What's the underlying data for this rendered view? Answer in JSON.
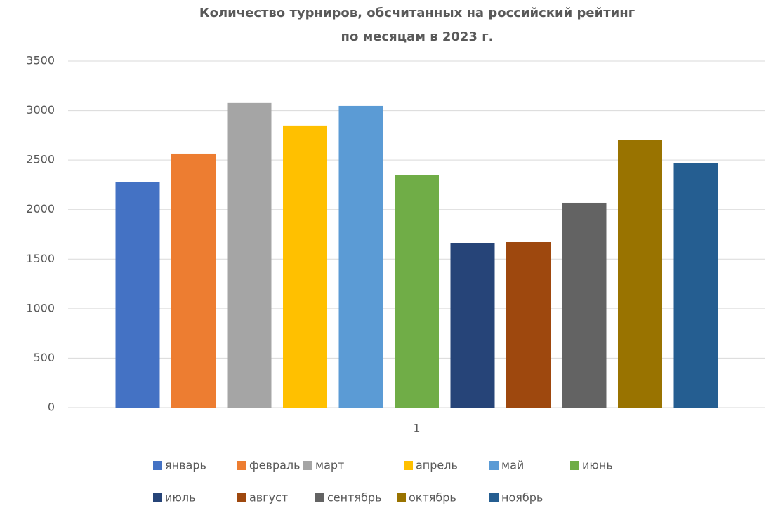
{
  "chart_data": {
    "type": "bar",
    "title": [
      "Количество турниров, обсчитанных на российский рейтинг",
      "по месяцам в 2023 г."
    ],
    "categories": [
      "1"
    ],
    "series": [
      {
        "name": "январь",
        "color": "#4472c4",
        "values": [
          2275
        ]
      },
      {
        "name": "февраль",
        "color": "#ed7d31",
        "values": [
          2565
        ]
      },
      {
        "name": "март",
        "color": "#a5a5a5",
        "values": [
          3076
        ]
      },
      {
        "name": "апрель",
        "color": "#ffc000",
        "values": [
          2849
        ]
      },
      {
        "name": "май",
        "color": "#5b9bd5",
        "values": [
          3047
        ]
      },
      {
        "name": "июнь",
        "color": "#70ad47",
        "values": [
          2346
        ]
      },
      {
        "name": "июль",
        "color": "#264478",
        "values": [
          1658
        ]
      },
      {
        "name": "август",
        "color": "#9e480e",
        "values": [
          1672
        ]
      },
      {
        "name": "сентябрь",
        "color": "#636363",
        "values": [
          2069
        ]
      },
      {
        "name": "октябрь",
        "color": "#997300",
        "values": [
          2700
        ]
      },
      {
        "name": "ноябрь",
        "color": "#255e91",
        "values": [
          2466
        ]
      }
    ],
    "ylim": [
      0,
      3500
    ],
    "yticks": [
      0,
      500,
      1000,
      1500,
      2000,
      2500,
      3000,
      3500
    ],
    "grid": true,
    "legend": "bottom"
  }
}
